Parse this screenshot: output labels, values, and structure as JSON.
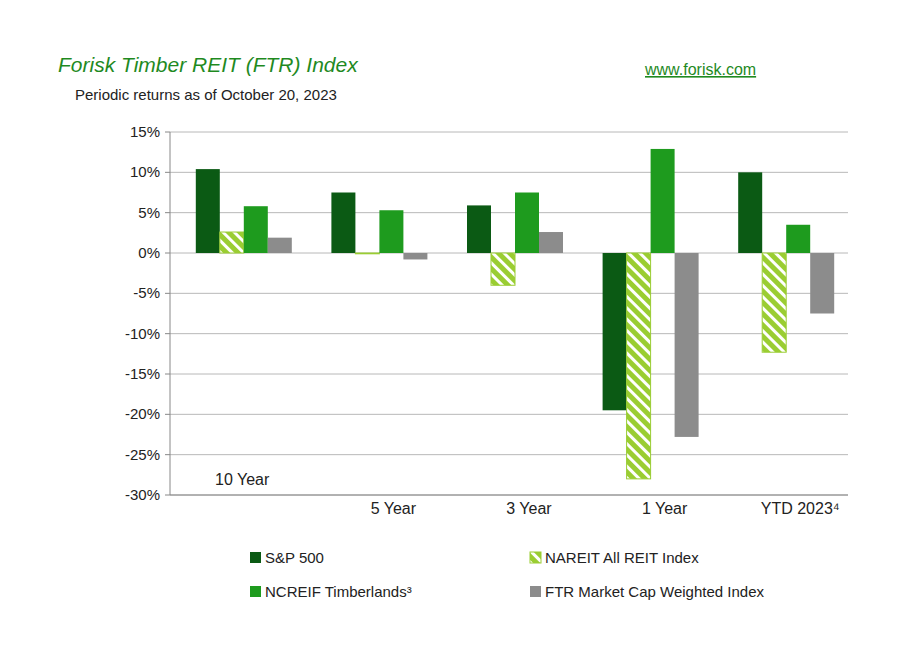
{
  "chart_data": {
    "type": "bar",
    "title": "Forisk Timber REIT (FTR) Index",
    "subtitle": "Periodic returns as of  October 20, 2023",
    "source": "www.forisk.com",
    "categories": [
      "10 Year",
      "5 Year",
      "3 Year",
      "1 Year",
      "YTD 2023⁴"
    ],
    "series": [
      {
        "name": "S&P 500",
        "color": "#0b5a14",
        "values": [
          10.4,
          7.5,
          5.9,
          -19.5,
          10.0
        ]
      },
      {
        "name": "NAREIT All REIT Index",
        "color": "#9acd32",
        "line_style": "hatched",
        "values": [
          2.6,
          -0.1,
          -4.0,
          -28.0,
          -12.3
        ]
      },
      {
        "name": "NCREIF Timberlands³",
        "color": "#1e9b1e",
        "values": [
          5.8,
          5.3,
          7.5,
          12.9,
          3.5
        ]
      },
      {
        "name": "FTR Market Cap Weighted Index",
        "color": "#8c8c8c",
        "values": [
          1.9,
          -0.8,
          2.6,
          -22.8,
          -7.5
        ]
      }
    ],
    "ylim": [
      -30,
      15
    ],
    "yticks": [
      {
        "value": -30,
        "label": "-30%"
      },
      {
        "value": -25,
        "label": "-25%"
      },
      {
        "value": -20,
        "label": "-20%"
      },
      {
        "value": -15,
        "label": "-15%"
      },
      {
        "value": -10,
        "label": "-10%"
      },
      {
        "value": -5,
        "label": "-5%"
      },
      {
        "value": 0,
        "label": "0%"
      },
      {
        "value": 5,
        "label": "5%"
      },
      {
        "value": 10,
        "label": "10%"
      },
      {
        "value": 15,
        "label": "15%"
      }
    ],
    "grid": true,
    "legend": "bottom"
  }
}
